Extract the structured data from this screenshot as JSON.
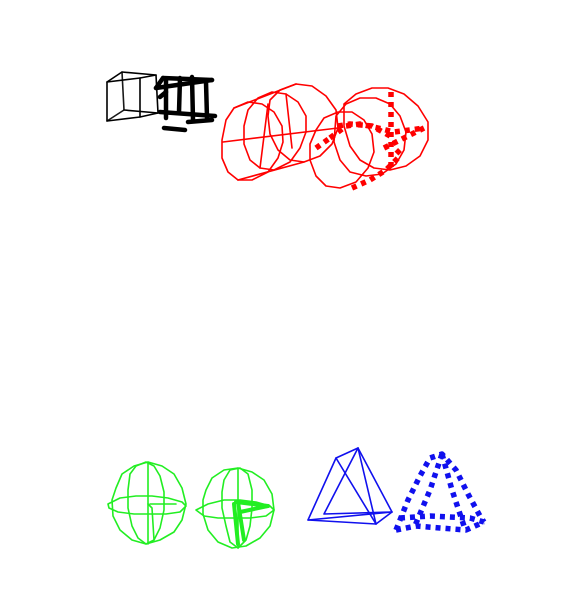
{
  "colors": {
    "background": "#ffffff",
    "cubes": "#000000",
    "cylinders": "#ff0000",
    "spheres": "#22ee22",
    "pyramids": "#1010ee"
  },
  "groups": [
    {
      "shape": "cube",
      "color": "#000000",
      "styles": [
        "solid-thin",
        "solid-bold"
      ]
    },
    {
      "shape": "cylinder",
      "color": "#ff0000",
      "styles": [
        "solid-thin",
        "dashed-bold"
      ]
    },
    {
      "shape": "sphere",
      "color": "#22ee22",
      "styles": [
        "solid-thin",
        "solid-thin"
      ]
    },
    {
      "shape": "pyramid",
      "color": "#1010ee",
      "styles": [
        "solid-thin",
        "dashed-bold"
      ]
    }
  ]
}
